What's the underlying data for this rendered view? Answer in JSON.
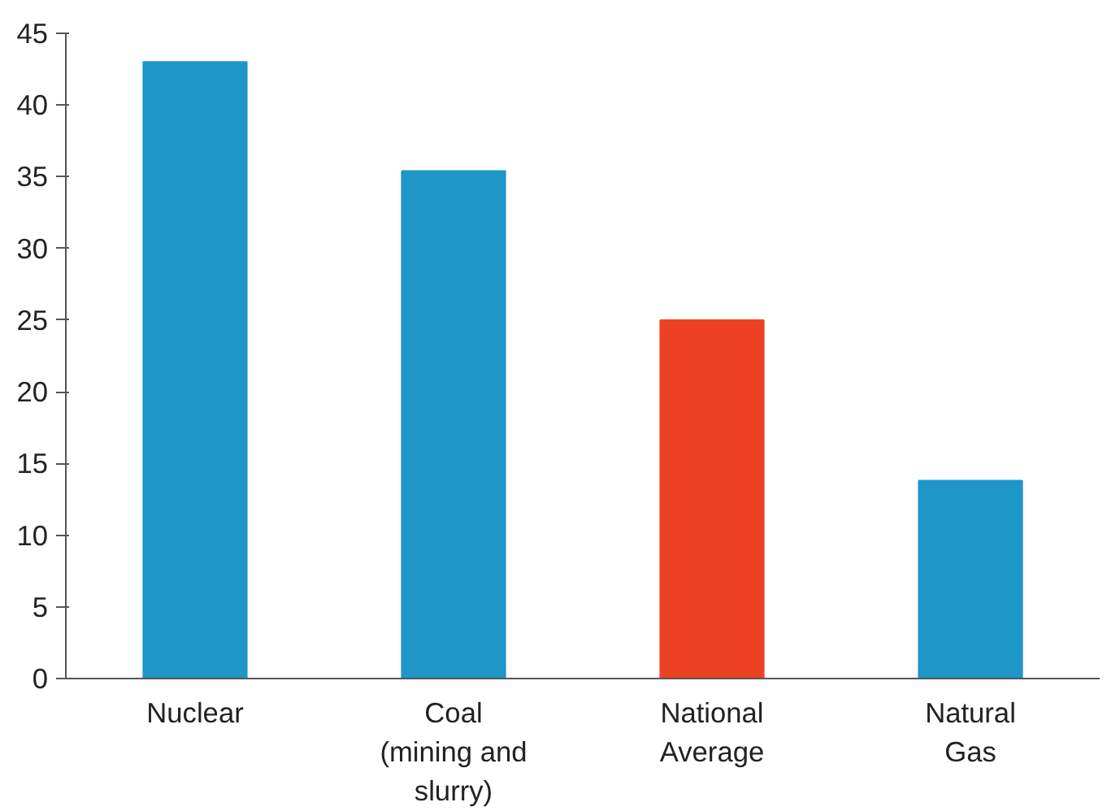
{
  "chart_data": {
    "type": "bar",
    "categories": [
      "Nuclear",
      "Coal\n(mining and\nslurry)",
      "National\nAverage",
      "Natural\nGas"
    ],
    "values": [
      43,
      35.4,
      25,
      13.8
    ],
    "colors": [
      "#1e96c8",
      "#1e96c8",
      "#ee4123",
      "#1e96c8"
    ],
    "ylim": [
      0,
      45
    ],
    "yticks": [
      0,
      5,
      10,
      15,
      20,
      25,
      30,
      35,
      40,
      45
    ],
    "grid": false
  }
}
